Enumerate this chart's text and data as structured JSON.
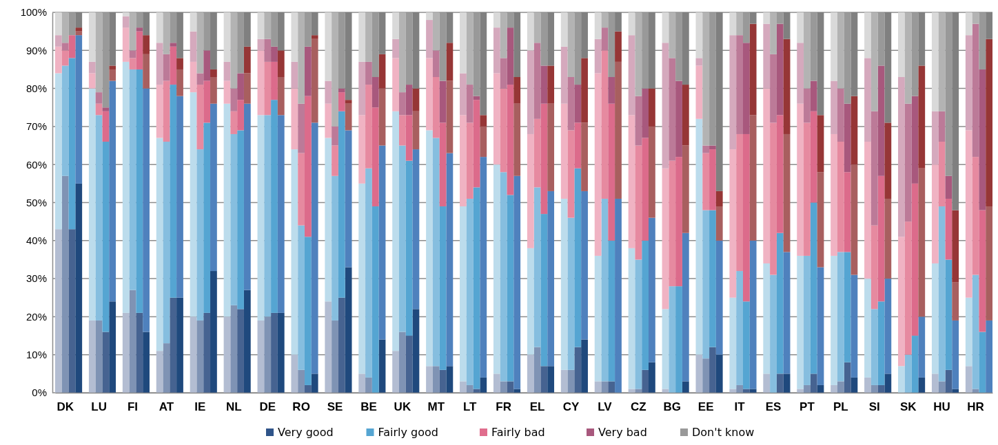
{
  "chart_data": {
    "type": "bar",
    "stacked": true,
    "grid": "y",
    "legend": "bottom",
    "categories": [
      null,
      "DK",
      null,
      null,
      null,
      null,
      "LU",
      null,
      null,
      null,
      null,
      "FI",
      null,
      null,
      null,
      null,
      "AT",
      null,
      null,
      null,
      null,
      "IE",
      null,
      null,
      null,
      null,
      "NL",
      null,
      null,
      null,
      null,
      "DE",
      null,
      null,
      null,
      null,
      "RO",
      null,
      null,
      null,
      null,
      "SE",
      null,
      null,
      null,
      null,
      "BE",
      null,
      null,
      null,
      null,
      "UK",
      null,
      null,
      null,
      null,
      "MT",
      null,
      null,
      null,
      null,
      "LT",
      null,
      null,
      null,
      null,
      "FR",
      null,
      null,
      null,
      null,
      "EL",
      null,
      null,
      null,
      null,
      "CY",
      null,
      null,
      null,
      null,
      "LV",
      null,
      null,
      null,
      null,
      "CZ",
      null,
      null,
      null,
      null,
      "BG",
      null,
      null,
      null,
      null,
      "EE",
      null,
      null,
      null,
      null,
      "IT",
      null,
      null,
      null,
      null,
      "ES",
      null,
      null,
      null,
      null,
      "PT",
      null,
      null,
      null,
      null,
      "PL",
      null,
      null,
      null,
      null,
      "SI",
      null,
      null,
      null,
      null,
      "SK",
      null,
      null,
      null,
      null,
      "HU",
      null,
      null,
      null,
      null,
      "HR",
      null,
      null
    ],
    "ylim": [
      0,
      100
    ],
    "yticks": [
      {
        "value": 0,
        "label": "0%"
      },
      {
        "value": 10,
        "label": "10%"
      },
      {
        "value": 20,
        "label": "20%"
      },
      {
        "value": 30,
        "label": "30%"
      },
      {
        "value": 40,
        "label": "40%"
      },
      {
        "value": 50,
        "label": "50%"
      },
      {
        "value": 60,
        "label": "60%"
      },
      {
        "value": 70,
        "label": "70%"
      },
      {
        "value": 80,
        "label": "80%"
      },
      {
        "value": 90,
        "label": "90%"
      },
      {
        "value": 100,
        "label": "100%"
      }
    ],
    "series": [
      {
        "name": "Very good",
        "color": "#2f5489",
        "values": [
          43,
          57,
          43,
          55,
          null,
          19,
          19,
          16,
          24,
          null,
          21,
          27,
          21,
          16,
          null,
          11,
          13,
          25,
          25,
          null,
          20,
          19,
          21,
          32,
          null,
          20,
          23,
          22,
          27,
          null,
          19,
          20,
          21,
          21,
          null,
          10,
          6,
          2,
          5,
          null,
          24,
          19,
          25,
          33,
          null,
          5,
          4,
          0,
          14,
          null,
          11,
          16,
          15,
          22,
          null,
          7,
          7,
          6,
          7,
          null,
          3,
          2,
          1,
          4,
          null,
          5,
          3,
          3,
          1,
          null,
          10,
          12,
          7,
          7,
          null,
          6,
          6,
          12,
          14,
          null,
          3,
          3,
          3,
          0,
          null,
          1,
          1,
          6,
          8,
          null,
          1,
          0,
          0,
          3,
          null,
          10,
          9,
          12,
          10,
          null,
          1,
          2,
          1,
          1,
          null,
          5,
          0,
          5,
          5,
          null,
          1,
          2,
          5,
          2,
          null,
          2,
          3,
          8,
          4,
          null,
          4,
          2,
          2,
          5,
          null,
          0,
          0,
          0,
          4,
          null,
          5,
          3,
          6,
          1,
          null,
          7,
          1,
          0,
          0
        ],
        "colors": [
          "#b3bdd2",
          "#7f93b4",
          "#466391",
          "#1f497d",
          null,
          "#b3bdd2",
          "#7f93b4",
          "#466391",
          "#1f497d",
          null,
          "#b3bdd2",
          "#7f93b4",
          "#466391",
          "#1f497d",
          null,
          "#b3bdd2",
          "#7f93b4",
          "#466391",
          "#1f497d",
          null,
          "#b3bdd2",
          "#7f93b4",
          "#466391",
          "#1f497d",
          null,
          "#b3bdd2",
          "#7f93b4",
          "#466391",
          "#1f497d",
          null,
          "#b3bdd2",
          "#7f93b4",
          "#466391",
          "#1f497d",
          null,
          "#b3bdd2",
          "#7f93b4",
          "#466391",
          "#1f497d",
          null,
          "#b3bdd2",
          "#7f93b4",
          "#466391",
          "#1f497d",
          null,
          "#b3bdd2",
          "#7f93b4",
          "#466391",
          "#1f497d",
          null,
          "#b3bdd2",
          "#7f93b4",
          "#466391",
          "#1f497d",
          null,
          "#b3bdd2",
          "#7f93b4",
          "#466391",
          "#1f497d",
          null,
          "#b3bdd2",
          "#7f93b4",
          "#466391",
          "#1f497d",
          null,
          "#b3bdd2",
          "#7f93b4",
          "#466391",
          "#1f497d",
          null,
          "#b3bdd2",
          "#7f93b4",
          "#466391",
          "#1f497d",
          null,
          "#b3bdd2",
          "#7f93b4",
          "#466391",
          "#1f497d",
          null,
          "#b3bdd2",
          "#7f93b4",
          "#466391",
          "#1f497d",
          null,
          "#b3bdd2",
          "#7f93b4",
          "#466391",
          "#1f497d",
          null,
          "#b3bdd2",
          "#7f93b4",
          "#466391",
          "#1f497d",
          null,
          "#b3bdd2",
          "#7f93b4",
          "#466391",
          "#1f497d",
          null,
          "#b3bdd2",
          "#7f93b4",
          "#466391",
          "#1f497d",
          null,
          "#b3bdd2",
          "#7f93b4",
          "#466391",
          "#1f497d",
          null,
          "#b3bdd2",
          "#7f93b4",
          "#466391",
          "#1f497d",
          null,
          "#b3bdd2",
          "#7f93b4",
          "#466391",
          "#1f497d",
          null,
          "#b3bdd2",
          "#7f93b4",
          "#466391",
          "#1f497d",
          null,
          "#b3bdd2",
          "#7f93b4",
          "#466391",
          "#1f497d",
          null,
          "#b3bdd2",
          "#7f93b4",
          "#466391",
          "#1f497d",
          null,
          "#b3bdd2",
          "#7f93b4",
          "#466391",
          "#1f497d"
        ]
      },
      {
        "name": "Fairly good",
        "color": "#55a5d2",
        "values": [
          41,
          29,
          45,
          39,
          null,
          61,
          54,
          50,
          58,
          null,
          66,
          58,
          64,
          64,
          null,
          56,
          53,
          56,
          53,
          null,
          59,
          45,
          50,
          44,
          null,
          56,
          45,
          47,
          49,
          null,
          54,
          53,
          56,
          52,
          null,
          54,
          38,
          39,
          66,
          null,
          43,
          38,
          49,
          36,
          null,
          50,
          55,
          49,
          51,
          null,
          63,
          49,
          46,
          42,
          null,
          62,
          60,
          43,
          56,
          null,
          46,
          49,
          53,
          58,
          null,
          55,
          55,
          49,
          56,
          null,
          28,
          42,
          40,
          46,
          null,
          45,
          40,
          47,
          39,
          null,
          33,
          48,
          37,
          51,
          null,
          37,
          34,
          34,
          38,
          null,
          21,
          28,
          28,
          39,
          null,
          62,
          39,
          36,
          30,
          null,
          24,
          30,
          23,
          39,
          null,
          29,
          31,
          37,
          32,
          null,
          35,
          34,
          45,
          31,
          null,
          34,
          34,
          29,
          27,
          null,
          26,
          20,
          22,
          25,
          null,
          7,
          10,
          15,
          16,
          null,
          29,
          46,
          29,
          18,
          null,
          18,
          30,
          16,
          19
        ],
        "colors": [
          "#bcdcec",
          "#86bedf",
          "#55a5d2",
          "#4f81bd",
          null,
          "#bcdcec",
          "#86bedf",
          "#55a5d2",
          "#4f81bd",
          null,
          "#bcdcec",
          "#86bedf",
          "#55a5d2",
          "#4f81bd",
          null,
          "#bcdcec",
          "#86bedf",
          "#55a5d2",
          "#4f81bd",
          null,
          "#bcdcec",
          "#86bedf",
          "#55a5d2",
          "#4f81bd",
          null,
          "#bcdcec",
          "#86bedf",
          "#55a5d2",
          "#4f81bd",
          null,
          "#bcdcec",
          "#86bedf",
          "#55a5d2",
          "#4f81bd",
          null,
          "#bcdcec",
          "#86bedf",
          "#55a5d2",
          "#4f81bd",
          null,
          "#bcdcec",
          "#86bedf",
          "#55a5d2",
          "#4f81bd",
          null,
          "#bcdcec",
          "#86bedf",
          "#55a5d2",
          "#4f81bd",
          null,
          "#bcdcec",
          "#86bedf",
          "#55a5d2",
          "#4f81bd",
          null,
          "#bcdcec",
          "#86bedf",
          "#55a5d2",
          "#4f81bd",
          null,
          "#bcdcec",
          "#86bedf",
          "#55a5d2",
          "#4f81bd",
          null,
          "#bcdcec",
          "#86bedf",
          "#55a5d2",
          "#4f81bd",
          null,
          "#bcdcec",
          "#86bedf",
          "#55a5d2",
          "#4f81bd",
          null,
          "#bcdcec",
          "#86bedf",
          "#55a5d2",
          "#4f81bd",
          null,
          "#bcdcec",
          "#86bedf",
          "#55a5d2",
          "#4f81bd",
          null,
          "#bcdcec",
          "#86bedf",
          "#55a5d2",
          "#4f81bd",
          null,
          "#bcdcec",
          "#86bedf",
          "#55a5d2",
          "#4f81bd",
          null,
          "#bcdcec",
          "#86bedf",
          "#55a5d2",
          "#4f81bd",
          null,
          "#bcdcec",
          "#86bedf",
          "#55a5d2",
          "#4f81bd",
          null,
          "#bcdcec",
          "#86bedf",
          "#55a5d2",
          "#4f81bd",
          null,
          "#bcdcec",
          "#86bedf",
          "#55a5d2",
          "#4f81bd",
          null,
          "#bcdcec",
          "#86bedf",
          "#55a5d2",
          "#4f81bd",
          null,
          "#bcdcec",
          "#86bedf",
          "#55a5d2",
          "#4f81bd",
          null,
          "#bcdcec",
          "#86bedf",
          "#55a5d2",
          "#4f81bd",
          null,
          "#bcdcec",
          "#86bedf",
          "#55a5d2",
          "#4f81bd",
          null,
          "#bcdcec",
          "#86bedf",
          "#55a5d2",
          "#4f81bd"
        ]
      },
      {
        "name": "Fairly bad",
        "color": "#e06d8d",
        "values": [
          7,
          4,
          6,
          1,
          null,
          4,
          3,
          8,
          3,
          null,
          9,
          3,
          10,
          9,
          null,
          14,
          16,
          10,
          7,
          null,
          8,
          17,
          11,
          7,
          null,
          6,
          6,
          8,
          8,
          null,
          17,
          14,
          10,
          10,
          null,
          16,
          19,
          37,
          22,
          null,
          9,
          8,
          5,
          7,
          null,
          18,
          22,
          26,
          15,
          null,
          14,
          8,
          12,
          10,
          null,
          19,
          16,
          22,
          19,
          null,
          24,
          20,
          23,
          8,
          null,
          24,
          22,
          29,
          19,
          null,
          30,
          18,
          29,
          23,
          null,
          25,
          23,
          12,
          18,
          null,
          48,
          39,
          36,
          36,
          null,
          35,
          30,
          27,
          24,
          null,
          37,
          33,
          34,
          23,
          null,
          14,
          15,
          16,
          9,
          null,
          39,
          36,
          44,
          33,
          null,
          46,
          40,
          31,
          31,
          null,
          40,
          35,
          24,
          25,
          null,
          32,
          29,
          21,
          29,
          null,
          36,
          22,
          33,
          21,
          null,
          34,
          35,
          40,
          39,
          null,
          26,
          17,
          16,
          10,
          null,
          44,
          31,
          32,
          30
        ],
        "colors": [
          "#f0b3c3",
          "#e68aa0",
          "#dc6b8b",
          "#a85f5f",
          null,
          "#f0b3c3",
          "#e68aa0",
          "#dc6b8b",
          "#a85f5f",
          null,
          "#f0b3c3",
          "#e68aa0",
          "#dc6b8b",
          "#a85f5f",
          null,
          "#f0b3c3",
          "#e68aa0",
          "#dc6b8b",
          "#a85f5f",
          null,
          "#f0b3c3",
          "#e68aa0",
          "#dc6b8b",
          "#a85f5f",
          null,
          "#f0b3c3",
          "#e68aa0",
          "#dc6b8b",
          "#a85f5f",
          null,
          "#f0b3c3",
          "#e68aa0",
          "#dc6b8b",
          "#a85f5f",
          null,
          "#f0b3c3",
          "#e68aa0",
          "#dc6b8b",
          "#a85f5f",
          null,
          "#f0b3c3",
          "#e68aa0",
          "#dc6b8b",
          "#a85f5f",
          null,
          "#f0b3c3",
          "#e68aa0",
          "#dc6b8b",
          "#a85f5f",
          null,
          "#f0b3c3",
          "#e68aa0",
          "#dc6b8b",
          "#a85f5f",
          null,
          "#f0b3c3",
          "#e68aa0",
          "#dc6b8b",
          "#a85f5f",
          null,
          "#f0b3c3",
          "#e68aa0",
          "#dc6b8b",
          "#a85f5f",
          null,
          "#f0b3c3",
          "#e68aa0",
          "#dc6b8b",
          "#a85f5f",
          null,
          "#f0b3c3",
          "#e68aa0",
          "#dc6b8b",
          "#a85f5f",
          null,
          "#f0b3c3",
          "#e68aa0",
          "#dc6b8b",
          "#a85f5f",
          null,
          "#f0b3c3",
          "#e68aa0",
          "#dc6b8b",
          "#a85f5f",
          null,
          "#f0b3c3",
          "#e68aa0",
          "#dc6b8b",
          "#a85f5f",
          null,
          "#f0b3c3",
          "#e68aa0",
          "#dc6b8b",
          "#a85f5f",
          null,
          "#f0b3c3",
          "#e68aa0",
          "#dc6b8b",
          "#a85f5f",
          null,
          "#f0b3c3",
          "#e68aa0",
          "#dc6b8b",
          "#a85f5f",
          null,
          "#f0b3c3",
          "#e68aa0",
          "#dc6b8b",
          "#a85f5f",
          null,
          "#f0b3c3",
          "#e68aa0",
          "#dc6b8b",
          "#a85f5f",
          null,
          "#f0b3c3",
          "#e68aa0",
          "#dc6b8b",
          "#a85f5f",
          null,
          "#f0b3c3",
          "#e68aa0",
          "#dc6b8b",
          "#a85f5f",
          null,
          "#f0b3c3",
          "#e68aa0",
          "#dc6b8b",
          "#a85f5f",
          null,
          "#f0b3c3",
          "#e68aa0",
          "#dc6b8b",
          "#a85f5f",
          null,
          "#f0b3c3",
          "#e68aa0",
          "#dc6b8b",
          "#a85f5f"
        ]
      },
      {
        "name": "Very bad",
        "color": "#a8587d",
        "values": [
          3,
          2,
          0,
          1,
          null,
          3,
          3,
          1,
          1,
          null,
          3,
          2,
          1,
          5,
          null,
          11,
          7,
          1,
          3,
          null,
          8,
          3,
          8,
          2,
          null,
          5,
          6,
          7,
          7,
          null,
          3,
          6,
          4,
          7,
          null,
          7,
          13,
          13,
          1,
          null,
          6,
          5,
          1,
          1,
          null,
          14,
          6,
          8,
          9,
          null,
          5,
          6,
          8,
          6,
          null,
          10,
          7,
          11,
          10,
          null,
          11,
          10,
          1,
          3,
          null,
          12,
          8,
          15,
          7,
          null,
          22,
          20,
          10,
          10,
          null,
          15,
          14,
          10,
          17,
          null,
          9,
          6,
          7,
          8,
          null,
          21,
          13,
          13,
          10,
          null,
          33,
          27,
          20,
          16,
          null,
          2,
          2,
          1,
          4,
          null,
          30,
          26,
          24,
          24,
          null,
          17,
          18,
          24,
          25,
          null,
          16,
          9,
          8,
          15,
          null,
          14,
          14,
          18,
          18,
          null,
          22,
          30,
          29,
          20,
          null,
          42,
          31,
          23,
          27,
          null,
          14,
          8,
          6,
          19,
          null,
          25,
          35,
          37,
          44
        ],
        "colors": [
          "#d5a9bd",
          "#bc7a98",
          "#a8587d",
          "#963636",
          null,
          "#d5a9bd",
          "#bc7a98",
          "#a8587d",
          "#963636",
          null,
          "#d5a9bd",
          "#bc7a98",
          "#a8587d",
          "#963636",
          null,
          "#d5a9bd",
          "#bc7a98",
          "#a8587d",
          "#963636",
          null,
          "#d5a9bd",
          "#bc7a98",
          "#a8587d",
          "#963636",
          null,
          "#d5a9bd",
          "#bc7a98",
          "#a8587d",
          "#963636",
          null,
          "#d5a9bd",
          "#bc7a98",
          "#a8587d",
          "#963636",
          null,
          "#d5a9bd",
          "#bc7a98",
          "#a8587d",
          "#963636",
          null,
          "#d5a9bd",
          "#bc7a98",
          "#a8587d",
          "#963636",
          null,
          "#d5a9bd",
          "#bc7a98",
          "#a8587d",
          "#963636",
          null,
          "#d5a9bd",
          "#bc7a98",
          "#a8587d",
          "#963636",
          null,
          "#d5a9bd",
          "#bc7a98",
          "#a8587d",
          "#963636",
          null,
          "#d5a9bd",
          "#bc7a98",
          "#a8587d",
          "#963636",
          null,
          "#d5a9bd",
          "#bc7a98",
          "#a8587d",
          "#963636",
          null,
          "#d5a9bd",
          "#bc7a98",
          "#a8587d",
          "#963636",
          null,
          "#d5a9bd",
          "#bc7a98",
          "#a8587d",
          "#963636",
          null,
          "#d5a9bd",
          "#bc7a98",
          "#a8587d",
          "#963636",
          null,
          "#d5a9bd",
          "#bc7a98",
          "#a8587d",
          "#963636",
          null,
          "#d5a9bd",
          "#bc7a98",
          "#a8587d",
          "#963636",
          null,
          "#d5a9bd",
          "#bc7a98",
          "#a8587d",
          "#963636",
          null,
          "#d5a9bd",
          "#bc7a98",
          "#a8587d",
          "#963636",
          null,
          "#d5a9bd",
          "#bc7a98",
          "#a8587d",
          "#963636",
          null,
          "#d5a9bd",
          "#bc7a98",
          "#a8587d",
          "#963636",
          null,
          "#d5a9bd",
          "#bc7a98",
          "#a8587d",
          "#963636",
          null,
          "#d5a9bd",
          "#bc7a98",
          "#a8587d",
          "#963636",
          null,
          "#d5a9bd",
          "#bc7a98",
          "#a8587d",
          "#963636",
          null,
          "#d5a9bd",
          "#bc7a98",
          "#a8587d",
          "#963636",
          null,
          "#d5a9bd",
          "#bc7a98",
          "#a8587d",
          "#963636"
        ]
      },
      {
        "name": "Don't know",
        "color": "#999999",
        "values": [
          6,
          8,
          6,
          4,
          null,
          13,
          21,
          25,
          14,
          null,
          1,
          10,
          4,
          6,
          null,
          8,
          11,
          8,
          12,
          null,
          5,
          16,
          10,
          15,
          null,
          13,
          20,
          16,
          9,
          null,
          7,
          7,
          9,
          10,
          null,
          13,
          24,
          9,
          6,
          null,
          18,
          30,
          20,
          23,
          null,
          13,
          13,
          17,
          11,
          null,
          7,
          21,
          19,
          20,
          null,
          2,
          10,
          18,
          8,
          null,
          16,
          19,
          22,
          27,
          null,
          4,
          12,
          4,
          17,
          null,
          10,
          8,
          14,
          14,
          null,
          9,
          17,
          19,
          12,
          null,
          7,
          4,
          17,
          5,
          null,
          6,
          22,
          20,
          20,
          null,
          8,
          12,
          18,
          19,
          null,
          12,
          35,
          35,
          47,
          null,
          6,
          6,
          8,
          3,
          null,
          3,
          11,
          3,
          7,
          null,
          8,
          20,
          18,
          27,
          null,
          18,
          20,
          24,
          22,
          null,
          12,
          26,
          14,
          29,
          null,
          17,
          24,
          22,
          14,
          null,
          26,
          26,
          43,
          52,
          null,
          6,
          3,
          15,
          7
        ],
        "colors": [
          "#d9d9d9",
          "#b3b3b3",
          "#999999",
          "#808080",
          null,
          "#d9d9d9",
          "#b3b3b3",
          "#999999",
          "#808080",
          null,
          "#d9d9d9",
          "#b3b3b3",
          "#999999",
          "#808080",
          null,
          "#d9d9d9",
          "#b3b3b3",
          "#999999",
          "#808080",
          null,
          "#d9d9d9",
          "#b3b3b3",
          "#999999",
          "#808080",
          null,
          "#d9d9d9",
          "#b3b3b3",
          "#999999",
          "#808080",
          null,
          "#d9d9d9",
          "#b3b3b3",
          "#999999",
          "#808080",
          null,
          "#d9d9d9",
          "#b3b3b3",
          "#999999",
          "#808080",
          null,
          "#d9d9d9",
          "#b3b3b3",
          "#999999",
          "#808080",
          null,
          "#d9d9d9",
          "#b3b3b3",
          "#999999",
          "#808080",
          null,
          "#d9d9d9",
          "#b3b3b3",
          "#999999",
          "#808080",
          null,
          "#d9d9d9",
          "#b3b3b3",
          "#999999",
          "#808080",
          null,
          "#d9d9d9",
          "#b3b3b3",
          "#999999",
          "#808080",
          null,
          "#d9d9d9",
          "#b3b3b3",
          "#999999",
          "#808080",
          null,
          "#d9d9d9",
          "#b3b3b3",
          "#999999",
          "#808080",
          null,
          "#d9d9d9",
          "#b3b3b3",
          "#999999",
          "#808080",
          null,
          "#d9d9d9",
          "#b3b3b3",
          "#999999",
          "#808080",
          null,
          "#d9d9d9",
          "#b3b3b3",
          "#999999",
          "#808080",
          null,
          "#d9d9d9",
          "#b3b3b3",
          "#999999",
          "#808080",
          null,
          "#d9d9d9",
          "#b3b3b3",
          "#999999",
          "#808080",
          null,
          "#d9d9d9",
          "#b3b3b3",
          "#999999",
          "#808080",
          null,
          "#d9d9d9",
          "#b3b3b3",
          "#999999",
          "#808080",
          null,
          "#d9d9d9",
          "#b3b3b3",
          "#999999",
          "#808080",
          null,
          "#d9d9d9",
          "#b3b3b3",
          "#999999",
          "#808080",
          null,
          "#d9d9d9",
          "#b3b3b3",
          "#999999",
          "#808080",
          null,
          "#d9d9d9",
          "#b3b3b3",
          "#999999",
          "#808080",
          null,
          "#d9d9d9",
          "#b3b3b3",
          "#999999",
          "#808080",
          null,
          "#d9d9d9",
          "#b3b3b3",
          "#999999",
          "#808080"
        ]
      }
    ]
  }
}
